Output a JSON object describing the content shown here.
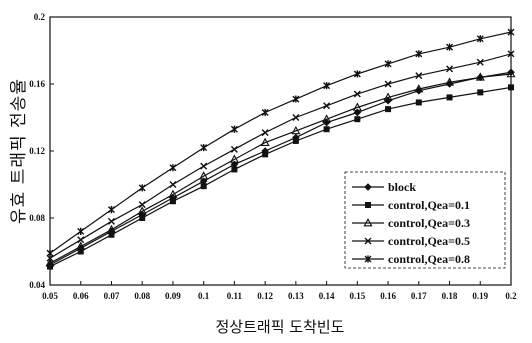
{
  "chart_data": {
    "type": "line",
    "title": "",
    "xlabel": "정상트래픽 도착빈도",
    "ylabel": "유효 트래픽 전송율",
    "x": [
      0.05,
      0.06,
      0.07,
      0.08,
      0.09,
      0.1,
      0.11,
      0.12,
      0.13,
      0.14,
      0.15,
      0.16,
      0.17,
      0.18,
      0.19,
      0.2
    ],
    "x_tick_labels": [
      "0.05",
      "0.06",
      "0.07",
      "0.08",
      "0.09",
      "0.1",
      "0.11",
      "0.12",
      "0.13",
      "0.14",
      "0.15",
      "0.16",
      "0.17",
      "0.18",
      "0.19",
      "0.2"
    ],
    "y_tick_labels": [
      "0.04",
      "0.08",
      "0.12",
      "0.16",
      "0.2"
    ],
    "y_ticks": [
      0.04,
      0.08,
      0.12,
      0.16,
      0.2
    ],
    "xlim": [
      0.05,
      0.2
    ],
    "ylim": [
      0.04,
      0.2
    ],
    "grid": false,
    "legend_position": "lower-right",
    "series": [
      {
        "name": "block",
        "marker": "diamond",
        "values": [
          0.052,
          0.062,
          0.072,
          0.082,
          0.092,
          0.102,
          0.112,
          0.12,
          0.128,
          0.137,
          0.143,
          0.15,
          0.156,
          0.16,
          0.164,
          0.167
        ]
      },
      {
        "name": "control,Qea=0.1",
        "marker": "square",
        "values": [
          0.051,
          0.06,
          0.07,
          0.08,
          0.09,
          0.099,
          0.109,
          0.118,
          0.126,
          0.133,
          0.139,
          0.145,
          0.149,
          0.152,
          0.155,
          0.158
        ]
      },
      {
        "name": "control,Qea=0.3",
        "marker": "triangle",
        "values": [
          0.053,
          0.063,
          0.073,
          0.084,
          0.094,
          0.105,
          0.115,
          0.125,
          0.132,
          0.139,
          0.146,
          0.152,
          0.157,
          0.161,
          0.164,
          0.166
        ]
      },
      {
        "name": "control,Qea=0.5",
        "marker": "x",
        "values": [
          0.056,
          0.067,
          0.078,
          0.088,
          0.1,
          0.111,
          0.121,
          0.131,
          0.14,
          0.147,
          0.154,
          0.16,
          0.165,
          0.169,
          0.173,
          0.178
        ]
      },
      {
        "name": "control,Qea=0.8",
        "marker": "star",
        "values": [
          0.059,
          0.072,
          0.085,
          0.098,
          0.11,
          0.122,
          0.133,
          0.143,
          0.151,
          0.159,
          0.166,
          0.172,
          0.178,
          0.182,
          0.187,
          0.191
        ]
      }
    ],
    "colors": {
      "line": "#111111",
      "background": "#ffffff"
    }
  }
}
